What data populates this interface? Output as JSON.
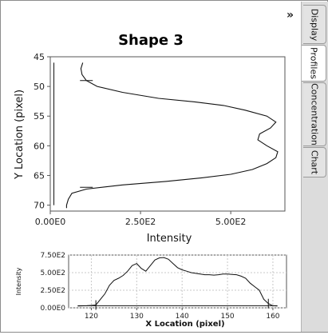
{
  "tabs": [
    {
      "label": "Display",
      "active": false
    },
    {
      "label": "Profiles",
      "active": true
    },
    {
      "label": "Concentration",
      "active": false
    },
    {
      "label": "Chart",
      "active": false
    }
  ],
  "collapse_icon": "»",
  "chart_data": [
    {
      "type": "line",
      "title": "Shape 3",
      "xlabel": "Intensity",
      "ylabel": "Y Location (pixel)",
      "xlim": [
        0,
        650
      ],
      "ylim": [
        45,
        71
      ],
      "y_inverted": true,
      "xticks": [
        {
          "value": 0,
          "label": "0.00E0"
        },
        {
          "value": 250,
          "label": "2.50E2"
        },
        {
          "value": 500,
          "label": "5.00E2"
        }
      ],
      "yticks": [
        {
          "value": 45,
          "label": "45"
        },
        {
          "value": 50,
          "label": "50"
        },
        {
          "value": 55,
          "label": "55"
        },
        {
          "value": 60,
          "label": "60"
        },
        {
          "value": 65,
          "label": "65"
        },
        {
          "value": 70,
          "label": "70"
        }
      ],
      "grid": false,
      "baseline_x": 10,
      "baseline_y_range": [
        46,
        70
      ],
      "markers_y": [
        49,
        67
      ],
      "series": [
        {
          "x": [
            90,
            85,
            88,
            100,
            130,
            200,
            300,
            400,
            480,
            540,
            600,
            625,
            610,
            580,
            575,
            600,
            630,
            625,
            600,
            560,
            500,
            420,
            320,
            200,
            100,
            60,
            50,
            45,
            45
          ],
          "y": [
            46,
            47,
            48,
            49,
            50,
            51,
            52,
            52.6,
            53.2,
            54,
            55,
            56,
            57,
            58,
            59,
            60,
            61,
            62,
            63,
            64,
            64.8,
            65.4,
            66,
            66.6,
            67.3,
            68,
            69,
            70,
            70.5
          ]
        }
      ]
    },
    {
      "type": "line",
      "title": "",
      "xlabel": "X Location (pixel)",
      "ylabel": "Intensity",
      "xlim": [
        115,
        163
      ],
      "ylim": [
        0,
        750
      ],
      "xticks": [
        {
          "value": 120,
          "label": "120"
        },
        {
          "value": 130,
          "label": "130"
        },
        {
          "value": 140,
          "label": "140"
        },
        {
          "value": 150,
          "label": "150"
        },
        {
          "value": 160,
          "label": "160"
        }
      ],
      "yticks": [
        {
          "value": 0,
          "label": "0.00E0"
        },
        {
          "value": 250,
          "label": "2.50E2"
        },
        {
          "value": 500,
          "label": "5.00E2"
        },
        {
          "value": 750,
          "label": "7.50E2"
        }
      ],
      "grid": true,
      "baseline_y": 30,
      "baseline_x_range": [
        117,
        161
      ],
      "markers_x": [
        121,
        159
      ],
      "series": [
        {
          "x": [
            117,
            119,
            121,
            123,
            124,
            125,
            126,
            127,
            128,
            129,
            130,
            131,
            132,
            133,
            134,
            135,
            136,
            137,
            138,
            139,
            140,
            141,
            142,
            143,
            144,
            145,
            146,
            147,
            148,
            149,
            150,
            151,
            152,
            153,
            154,
            155,
            156,
            157,
            158,
            159,
            160,
            161
          ],
          "y": [
            25,
            30,
            40,
            200,
            320,
            390,
            420,
            460,
            520,
            600,
            630,
            560,
            520,
            600,
            680,
            710,
            715,
            690,
            630,
            570,
            540,
            520,
            500,
            490,
            480,
            470,
            470,
            465,
            470,
            480,
            480,
            475,
            470,
            450,
            420,
            350,
            300,
            250,
            120,
            60,
            30,
            25
          ]
        }
      ]
    }
  ]
}
